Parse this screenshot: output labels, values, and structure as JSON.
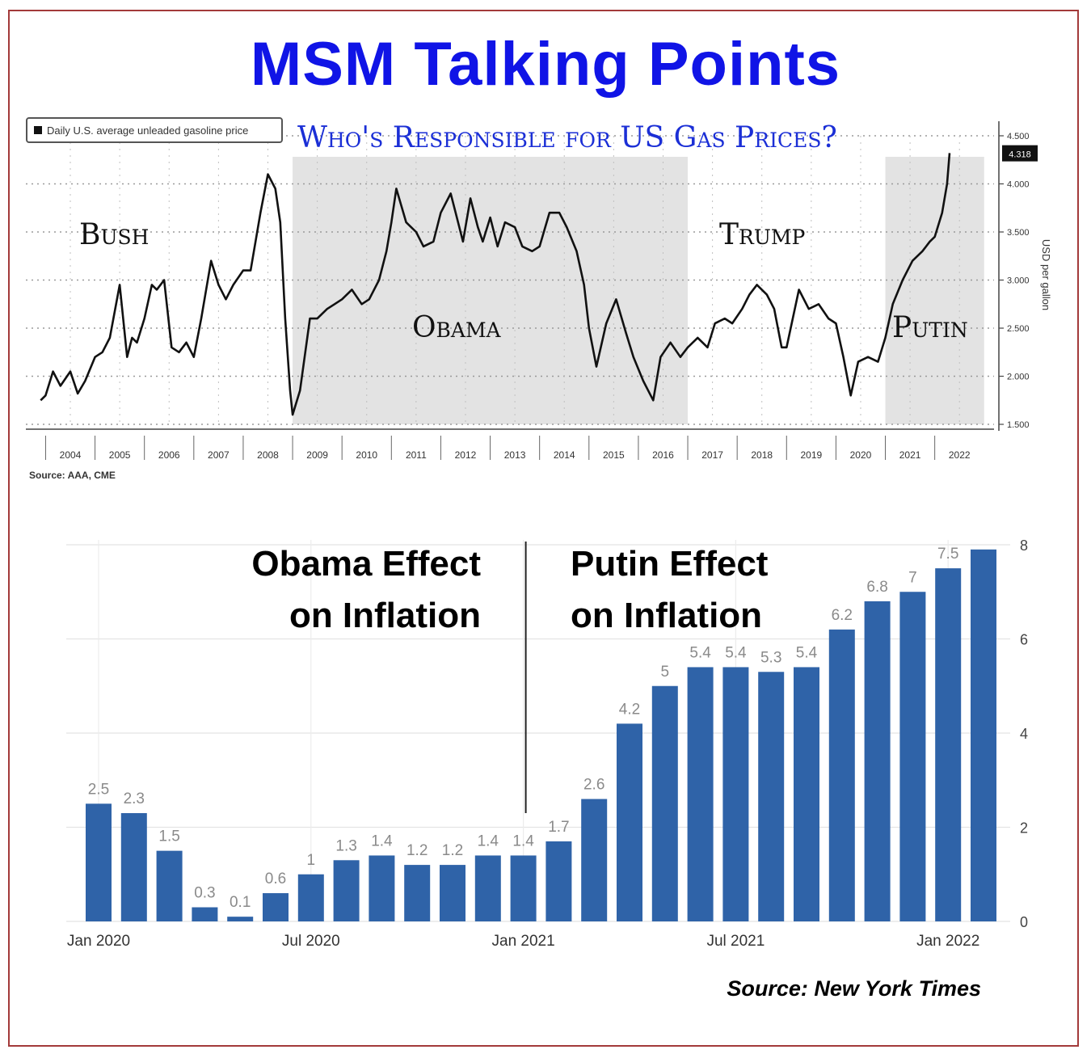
{
  "title": "MSM Talking Points",
  "chart_data": [
    {
      "type": "line",
      "title": "Who's Responsible for US Gas Prices?",
      "legend": "Daily U.S. average unleaded gasoline price",
      "ylabel": "USD per gallon",
      "source": "Source: AAA, CME",
      "ylim": [
        1.5,
        4.5
      ],
      "y_ticks": [
        "1.500",
        "2.000",
        "2.500",
        "3.000",
        "3.500",
        "4.000",
        "4.500"
      ],
      "current_value_label": "4.318",
      "x_ticks": [
        "2004",
        "2005",
        "2006",
        "2007",
        "2008",
        "2009",
        "2010",
        "2011",
        "2012",
        "2013",
        "2014",
        "2015",
        "2016",
        "2017",
        "2018",
        "2019",
        "2020",
        "2021",
        "2022"
      ],
      "eras": [
        {
          "label": "Bush",
          "start": 2003.9,
          "end": 2009.0,
          "shaded": false
        },
        {
          "label": "Obama",
          "start": 2009.0,
          "end": 2017.0,
          "shaded": true
        },
        {
          "label": "Trump",
          "start": 2017.0,
          "end": 2021.0,
          "shaded": false
        },
        {
          "label": "Putin",
          "start": 2021.0,
          "end": 2023.0,
          "shaded": true
        }
      ],
      "x": [
        2003.9,
        2004.0,
        2004.15,
        2004.3,
        2004.5,
        2004.65,
        2004.8,
        2005.0,
        2005.15,
        2005.3,
        2005.5,
        2005.65,
        2005.75,
        2005.85,
        2006.0,
        2006.15,
        2006.25,
        2006.4,
        2006.55,
        2006.7,
        2006.85,
        2007.0,
        2007.15,
        2007.35,
        2007.5,
        2007.65,
        2007.8,
        2008.0,
        2008.15,
        2008.35,
        2008.5,
        2008.65,
        2008.75,
        2008.85,
        2008.95,
        2009.0,
        2009.15,
        2009.35,
        2009.5,
        2009.7,
        2009.85,
        2010.0,
        2010.2,
        2010.4,
        2010.55,
        2010.75,
        2010.9,
        2011.0,
        2011.1,
        2011.3,
        2011.5,
        2011.65,
        2011.85,
        2012.0,
        2012.2,
        2012.3,
        2012.45,
        2012.6,
        2012.75,
        2012.85,
        2013.0,
        2013.15,
        2013.3,
        2013.5,
        2013.65,
        2013.85,
        2014.0,
        2014.2,
        2014.4,
        2014.55,
        2014.75,
        2014.9,
        2015.0,
        2015.15,
        2015.35,
        2015.55,
        2015.75,
        2015.9,
        2016.1,
        2016.3,
        2016.45,
        2016.65,
        2016.85,
        2017.0,
        2017.2,
        2017.4,
        2017.55,
        2017.75,
        2017.9,
        2018.1,
        2018.25,
        2018.4,
        2018.6,
        2018.75,
        2018.9,
        2019.0,
        2019.25,
        2019.45,
        2019.65,
        2019.85,
        2020.0,
        2020.15,
        2020.3,
        2020.45,
        2020.65,
        2020.85,
        2021.0,
        2021.15,
        2021.35,
        2021.55,
        2021.75,
        2021.9,
        2022.0,
        2022.15,
        2022.25,
        2022.3
      ],
      "y": [
        1.75,
        1.8,
        2.05,
        1.9,
        2.05,
        1.82,
        1.95,
        2.2,
        2.25,
        2.4,
        2.95,
        2.2,
        2.4,
        2.35,
        2.6,
        2.95,
        2.9,
        3.0,
        2.3,
        2.25,
        2.35,
        2.2,
        2.6,
        3.2,
        2.95,
        2.8,
        2.95,
        3.1,
        3.1,
        3.7,
        4.1,
        3.95,
        3.6,
        2.6,
        1.85,
        1.6,
        1.85,
        2.6,
        2.6,
        2.7,
        2.75,
        2.8,
        2.9,
        2.75,
        2.8,
        3.0,
        3.3,
        3.6,
        3.95,
        3.6,
        3.5,
        3.35,
        3.4,
        3.7,
        3.9,
        3.7,
        3.4,
        3.85,
        3.55,
        3.4,
        3.65,
        3.35,
        3.6,
        3.55,
        3.35,
        3.3,
        3.35,
        3.7,
        3.7,
        3.55,
        3.3,
        2.95,
        2.5,
        2.1,
        2.55,
        2.8,
        2.45,
        2.2,
        1.95,
        1.75,
        2.2,
        2.35,
        2.2,
        2.3,
        2.4,
        2.3,
        2.55,
        2.6,
        2.55,
        2.7,
        2.85,
        2.95,
        2.85,
        2.7,
        2.3,
        2.3,
        2.9,
        2.7,
        2.75,
        2.6,
        2.55,
        2.2,
        1.8,
        2.15,
        2.2,
        2.15,
        2.4,
        2.75,
        3.0,
        3.2,
        3.3,
        3.4,
        3.45,
        3.7,
        4.0,
        4.32
      ]
    },
    {
      "type": "bar",
      "source": "Source:  New York Times",
      "ylim": [
        0,
        8
      ],
      "y_ticks": [
        "0",
        "2",
        "4",
        "6",
        "8"
      ],
      "x_ticks": [
        {
          "label": "Jan 2020",
          "index": 0
        },
        {
          "label": "Jul 2020",
          "index": 6
        },
        {
          "label": "Jan 2021",
          "index": 12
        },
        {
          "label": "Jul 2021",
          "index": 18
        },
        {
          "label": "Jan 2022",
          "index": 24
        }
      ],
      "categories": [
        "Jan 2020",
        "Feb 2020",
        "Mar 2020",
        "Apr 2020",
        "May 2020",
        "Jun 2020",
        "Jul 2020",
        "Aug 2020",
        "Sep 2020",
        "Oct 2020",
        "Nov 2020",
        "Dec 2020",
        "Jan 2021",
        "Feb 2021",
        "Mar 2021",
        "Apr 2021",
        "May 2021",
        "Jun 2021",
        "Jul 2021",
        "Aug 2021",
        "Sep 2021",
        "Oct 2021",
        "Nov 2021",
        "Dec 2021",
        "Jan 2022",
        "Feb 2022"
      ],
      "values": [
        2.5,
        2.3,
        1.5,
        0.3,
        0.1,
        0.6,
        1.0,
        1.3,
        1.4,
        1.2,
        1.2,
        1.4,
        1.4,
        1.7,
        2.6,
        4.2,
        5.0,
        5.4,
        5.4,
        5.3,
        5.4,
        6.2,
        6.8,
        7.0,
        7.5,
        7.9
      ],
      "value_labels": [
        "2.5",
        "2.3",
        "1.5",
        "0.3",
        "0.1",
        "0.6",
        "1",
        "1.3",
        "1.4",
        "1.2",
        "1.2",
        "1.4",
        "1.4",
        "1.7",
        "2.6",
        "4.2",
        "5",
        "5.4",
        "5.4",
        "5.3",
        "5.4",
        "6.2",
        "6.8",
        "7",
        "7.5",
        ""
      ],
      "annotations": {
        "left_line1": "Obama Effect",
        "left_line2": "on Inflation",
        "right_line1": "Putin Effect",
        "right_line2": "on Inflation"
      },
      "bar_color": "#2f63a8"
    }
  ]
}
